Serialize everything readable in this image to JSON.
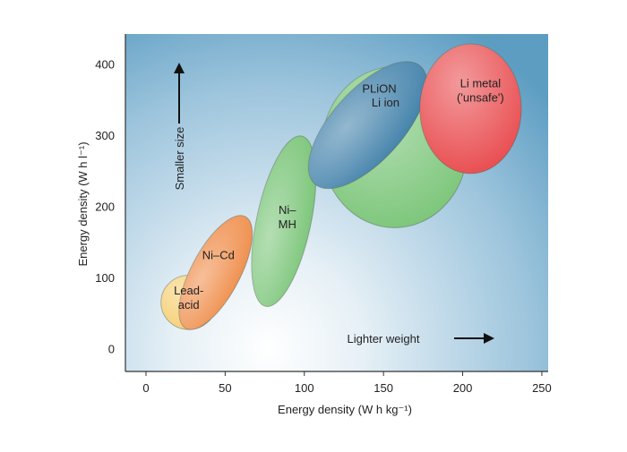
{
  "chart_data": {
    "type": "scatter",
    "xlabel": "Energy density (W h kg⁻¹)",
    "ylabel": "Energy density (W h l⁻¹)",
    "xlim": [
      -13,
      254
    ],
    "ylim": [
      -32,
      442
    ],
    "x_ticks": [
      0,
      50,
      100,
      150,
      200,
      250
    ],
    "y_ticks": [
      0,
      100,
      200,
      300,
      400
    ],
    "grid": false,
    "legend": "none",
    "regions": [
      {
        "label": [
          "Lead-",
          "acid"
        ],
        "cx": 27,
        "cy": 65,
        "rx": 17.5,
        "ry": 38,
        "rotation": 0,
        "color": "#f6cf74"
      },
      {
        "label": [
          "Ni–Cd"
        ],
        "cx": 44,
        "cy": 107,
        "rx": 40,
        "ry": 34,
        "rotation": -62,
        "color": "#ef8c48"
      },
      {
        "label": [
          "Ni–",
          "MH"
        ],
        "cx": 87,
        "cy": 179,
        "rx": 55,
        "ry": 38,
        "rotation": -78,
        "color": "#78c476"
      },
      {
        "label": [
          "PLiON"
        ],
        "cx": 157,
        "cy": 283,
        "rx": 46,
        "ry": 113,
        "rotation": 0,
        "color": "#78c476"
      },
      {
        "label": [
          "Li ion"
        ],
        "cx": 140,
        "cy": 314,
        "rx": 50,
        "ry": 50,
        "rotation": -48,
        "color": "#3d7ea8"
      },
      {
        "label": [
          "Li metal",
          "('unsafe')"
        ],
        "cx": 205,
        "cy": 337,
        "rx": 32,
        "ry": 91,
        "rotation": 0,
        "color": "#e8474a"
      }
    ],
    "annotations": [
      {
        "text": "Smaller size",
        "direction": "up"
      },
      {
        "text": "Lighter weight",
        "direction": "right"
      }
    ]
  }
}
